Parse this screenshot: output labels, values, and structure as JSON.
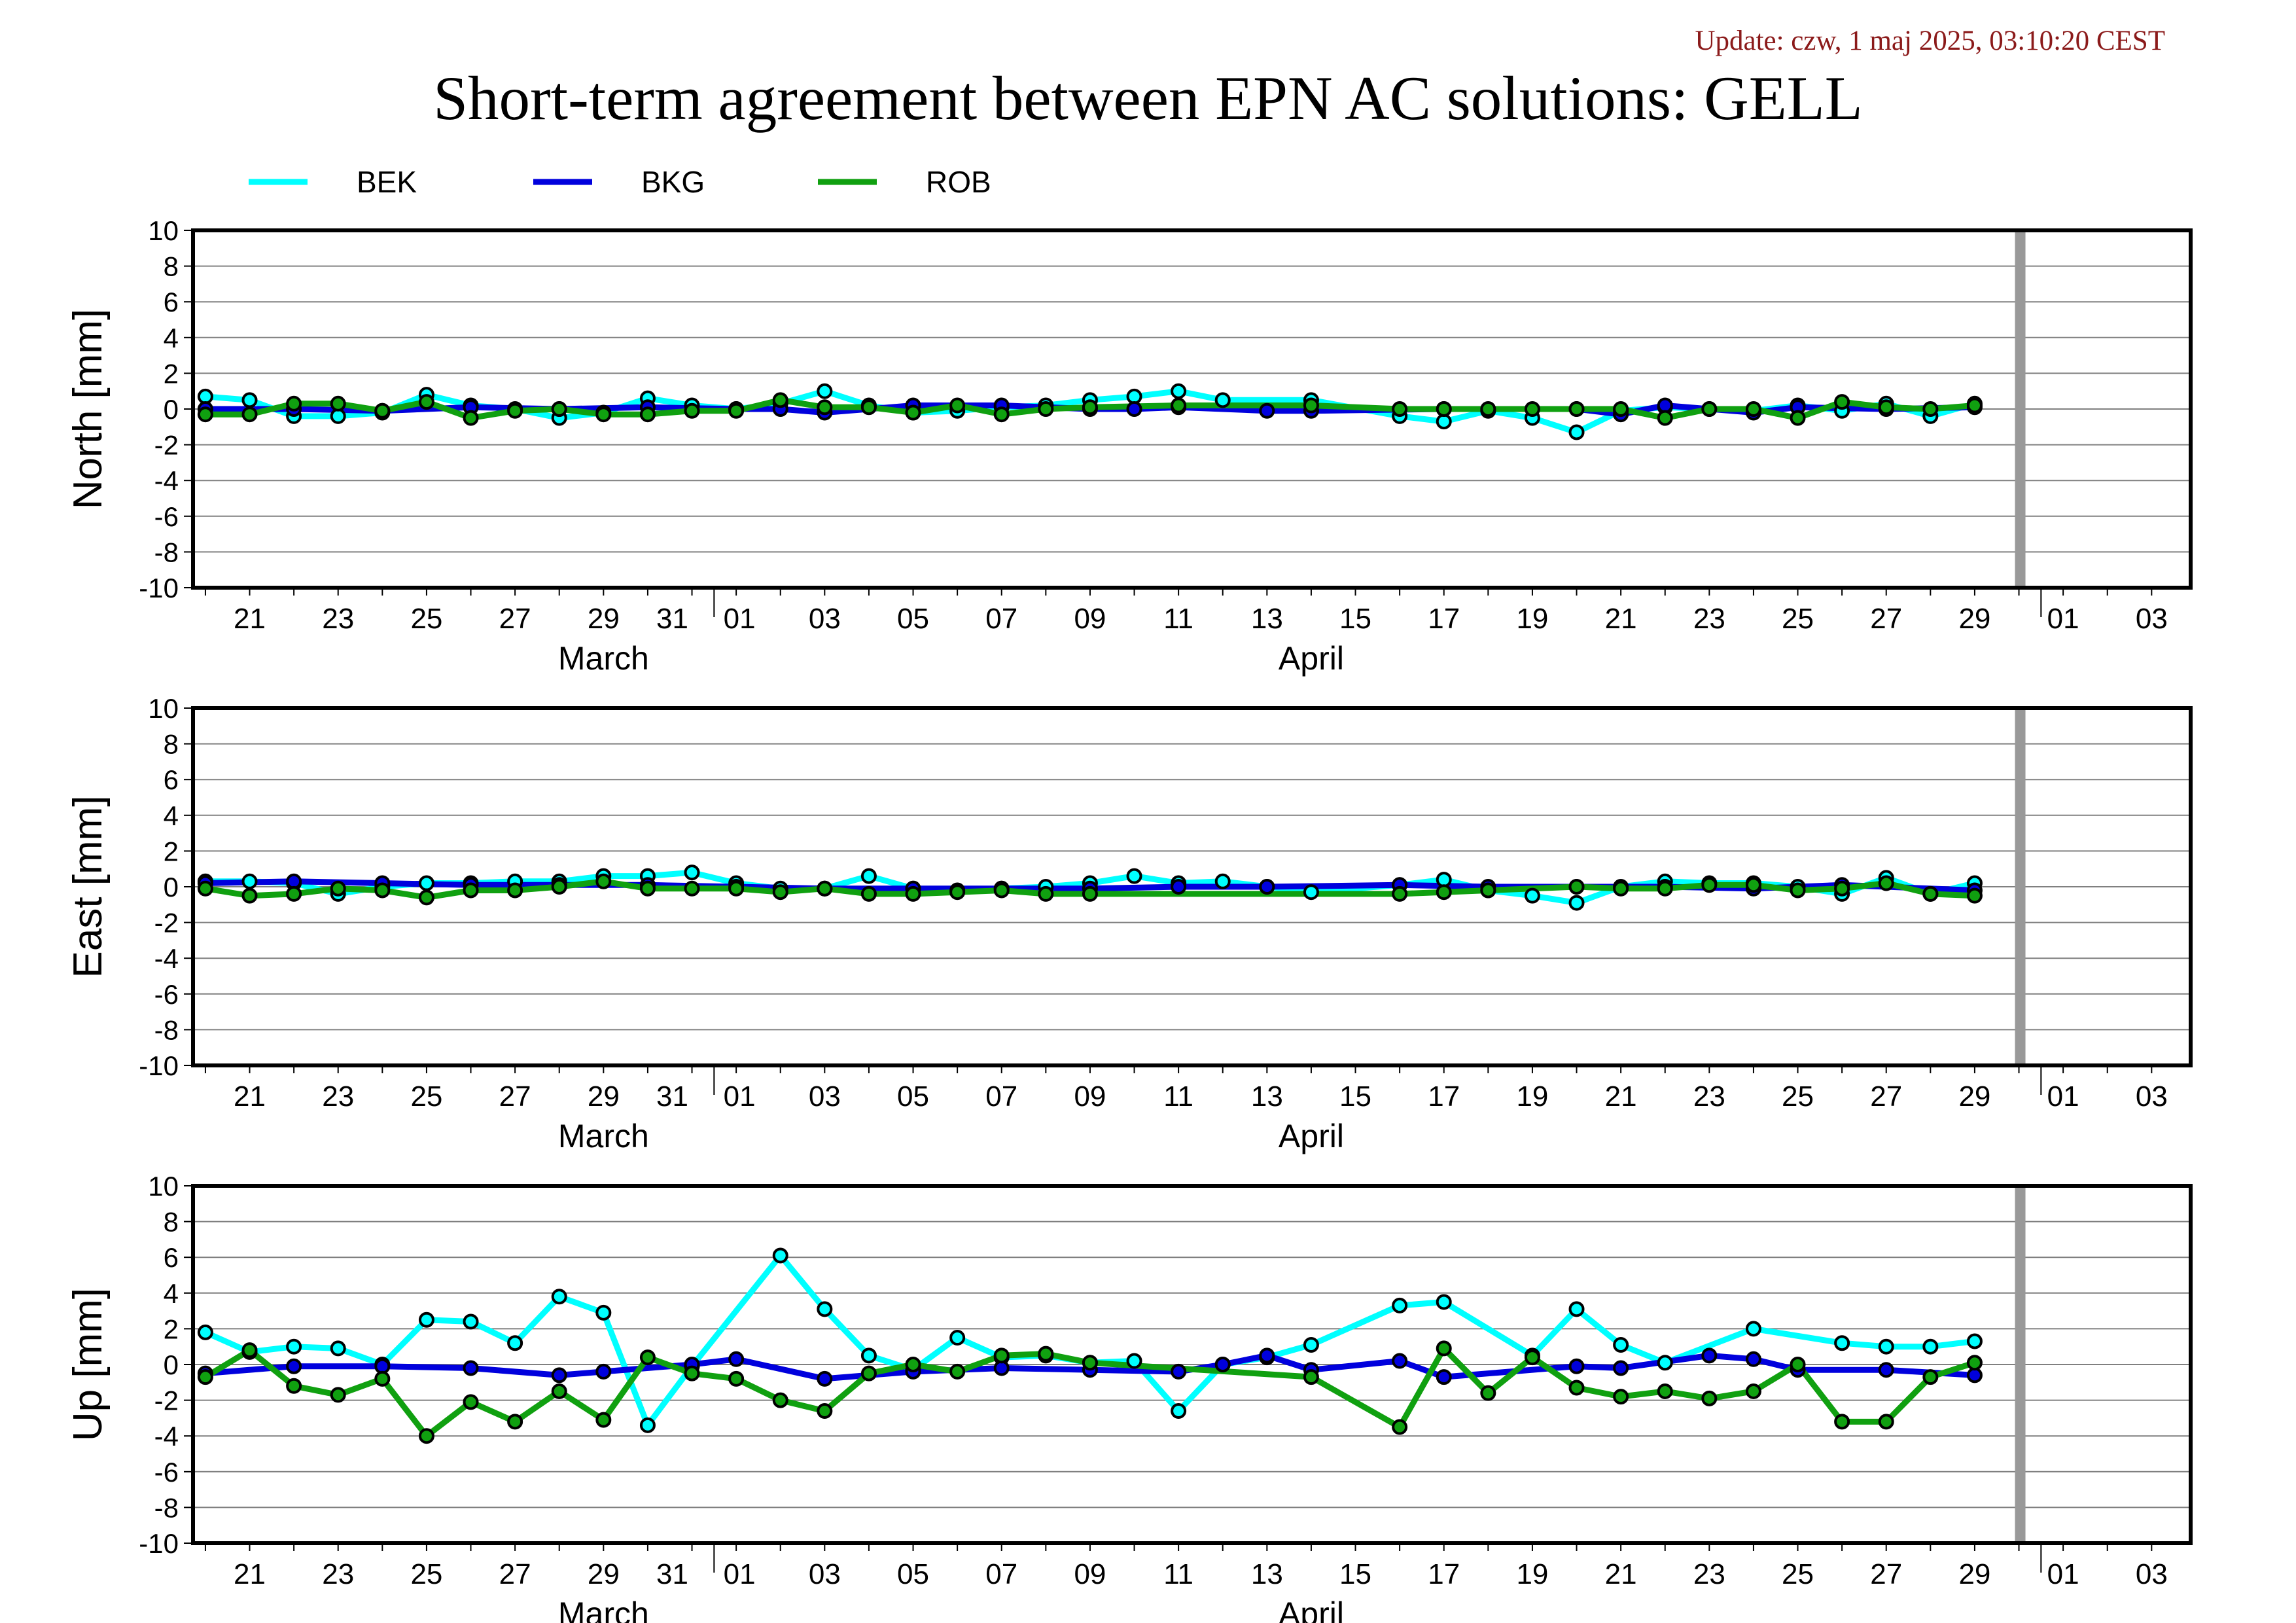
{
  "update_text": "Update: czw, 1 maj 2025, 03:10:20 CEST",
  "title": "Short-term agreement between EPN AC solutions: GELL",
  "colors": {
    "BEK": "#00ffff",
    "BKG": "#0000dd",
    "ROB": "#10a010",
    "marker_edge": "#000000",
    "gap_bar": "#999999",
    "grid": "#808080"
  },
  "chart_data": {
    "type": "line",
    "x_ticks": [
      "21",
      "23",
      "25",
      "27",
      "29",
      "31",
      "01",
      "03",
      "05",
      "07",
      "09",
      "11",
      "13",
      "15",
      "17",
      "19",
      "21",
      "23",
      "25",
      "27",
      "29",
      "01",
      "03"
    ],
    "month_labels": [
      "March",
      "April"
    ],
    "y_ticks": [
      "10",
      "8",
      "6",
      "4",
      "2",
      "0",
      "-2",
      "-4",
      "-6",
      "-8",
      "-10"
    ],
    "ylim": [
      -10,
      10
    ],
    "x_range": [
      "2025-03-20",
      "2025-05-04"
    ],
    "data_gap_date": "2025-04-30",
    "legend": [
      "BEK",
      "BKG",
      "ROB"
    ],
    "panels": [
      {
        "ylabel": "North [mm]",
        "series": [
          {
            "name": "BEK",
            "x": [
              "2025-03-20",
              "2025-03-21",
              "2025-03-22",
              "2025-03-23",
              "2025-03-24",
              "2025-03-25",
              "2025-03-26",
              "2025-03-27",
              "2025-03-28",
              "2025-03-29",
              "2025-03-30",
              "2025-03-31",
              "2025-04-01",
              "2025-04-02",
              "2025-04-03",
              "2025-04-04",
              "2025-04-05",
              "2025-04-06",
              "2025-04-07",
              "2025-04-08",
              "2025-04-09",
              "2025-04-10",
              "2025-04-11",
              "2025-04-12",
              "2025-04-14",
              "2025-04-16",
              "2025-04-17",
              "2025-04-18",
              "2025-04-19",
              "2025-04-20",
              "2025-04-21",
              "2025-04-22",
              "2025-04-23",
              "2025-04-24",
              "2025-04-25",
              "2025-04-26",
              "2025-04-27",
              "2025-04-28",
              "2025-04-29"
            ],
            "values": [
              0.7,
              0.5,
              -0.4,
              -0.4,
              -0.2,
              0.8,
              0.2,
              0.0,
              -0.5,
              -0.2,
              0.6,
              0.2,
              0.0,
              0.3,
              1.0,
              0.2,
              -0.2,
              -0.1,
              0.1,
              0.2,
              0.5,
              0.7,
              1.0,
              0.5,
              0.5,
              -0.4,
              -0.7,
              -0.1,
              -0.5,
              -1.3,
              -0.1,
              0.1,
              0.0,
              -0.1,
              0.2,
              -0.1,
              0.3,
              -0.4,
              0.3
            ]
          },
          {
            "name": "BKG",
            "x": [
              "2025-03-20",
              "2025-03-22",
              "2025-03-24",
              "2025-03-26",
              "2025-03-28",
              "2025-03-30",
              "2025-04-01",
              "2025-04-02",
              "2025-04-03",
              "2025-04-05",
              "2025-04-07",
              "2025-04-09",
              "2025-04-10",
              "2025-04-11",
              "2025-04-13",
              "2025-04-14",
              "2025-04-17",
              "2025-04-20",
              "2025-04-21",
              "2025-04-22",
              "2025-04-24",
              "2025-04-25",
              "2025-04-27",
              "2025-04-29"
            ],
            "values": [
              0.0,
              0.0,
              -0.1,
              0.1,
              0.0,
              0.1,
              0.0,
              0.0,
              -0.2,
              0.2,
              0.2,
              0.0,
              0.0,
              0.1,
              -0.1,
              -0.1,
              0.0,
              0.0,
              -0.3,
              0.2,
              -0.2,
              0.1,
              0.0,
              0.1
            ]
          },
          {
            "name": "ROB",
            "x": [
              "2025-03-20",
              "2025-03-21",
              "2025-03-22",
              "2025-03-23",
              "2025-03-24",
              "2025-03-25",
              "2025-03-26",
              "2025-03-27",
              "2025-03-28",
              "2025-03-29",
              "2025-03-30",
              "2025-03-31",
              "2025-04-01",
              "2025-04-02",
              "2025-04-03",
              "2025-04-04",
              "2025-04-05",
              "2025-04-06",
              "2025-04-07",
              "2025-04-08",
              "2025-04-09",
              "2025-04-11",
              "2025-04-14",
              "2025-04-16",
              "2025-04-17",
              "2025-04-18",
              "2025-04-19",
              "2025-04-20",
              "2025-04-21",
              "2025-04-22",
              "2025-04-23",
              "2025-04-24",
              "2025-04-25",
              "2025-04-26",
              "2025-04-27",
              "2025-04-28",
              "2025-04-29"
            ],
            "values": [
              -0.3,
              -0.3,
              0.3,
              0.3,
              -0.1,
              0.4,
              -0.5,
              -0.1,
              0.0,
              -0.3,
              -0.3,
              -0.1,
              -0.1,
              0.5,
              0.1,
              0.1,
              -0.2,
              0.2,
              -0.3,
              0.0,
              0.1,
              0.2,
              0.2,
              0.0,
              0.0,
              0.0,
              0.0,
              0.0,
              0.0,
              -0.5,
              0.0,
              0.0,
              -0.5,
              0.4,
              0.1,
              0.0,
              0.2
            ]
          }
        ]
      },
      {
        "ylabel": "East [mm]",
        "series": [
          {
            "name": "BEK",
            "x": [
              "2025-03-20",
              "2025-03-21",
              "2025-03-22",
              "2025-03-23",
              "2025-03-24",
              "2025-03-25",
              "2025-03-26",
              "2025-03-27",
              "2025-03-28",
              "2025-03-29",
              "2025-03-30",
              "2025-03-31",
              "2025-04-01",
              "2025-04-02",
              "2025-04-03",
              "2025-04-04",
              "2025-04-05",
              "2025-04-06",
              "2025-04-07",
              "2025-04-08",
              "2025-04-09",
              "2025-04-10",
              "2025-04-11",
              "2025-04-12",
              "2025-04-13",
              "2025-04-14",
              "2025-04-16",
              "2025-04-17",
              "2025-04-18",
              "2025-04-19",
              "2025-04-20",
              "2025-04-21",
              "2025-04-22",
              "2025-04-23",
              "2025-04-24",
              "2025-04-25",
              "2025-04-26",
              "2025-04-27",
              "2025-04-28",
              "2025-04-29"
            ],
            "values": [
              0.3,
              0.3,
              0.2,
              -0.4,
              0.0,
              0.2,
              0.2,
              0.3,
              0.3,
              0.6,
              0.6,
              0.8,
              0.2,
              -0.1,
              -0.1,
              0.6,
              -0.1,
              -0.2,
              -0.1,
              0.0,
              0.2,
              0.6,
              0.2,
              0.3,
              0.0,
              -0.3,
              0.1,
              0.4,
              -0.2,
              -0.5,
              -0.9,
              0.0,
              0.3,
              0.2,
              0.2,
              0.0,
              -0.4,
              0.5,
              -0.4,
              0.2
            ]
          },
          {
            "name": "BKG",
            "x": [
              "2025-03-20",
              "2025-03-22",
              "2025-03-24",
              "2025-03-26",
              "2025-03-28",
              "2025-03-30",
              "2025-04-01",
              "2025-04-03",
              "2025-04-05",
              "2025-04-07",
              "2025-04-09",
              "2025-04-11",
              "2025-04-13",
              "2025-04-16",
              "2025-04-18",
              "2025-04-20",
              "2025-04-22",
              "2025-04-24",
              "2025-04-26",
              "2025-04-29"
            ],
            "values": [
              0.2,
              0.3,
              0.2,
              0.1,
              0.1,
              0.1,
              0.0,
              -0.1,
              -0.1,
              -0.1,
              -0.1,
              0.0,
              0.0,
              0.1,
              0.0,
              0.0,
              0.0,
              -0.1,
              0.1,
              -0.2
            ]
          },
          {
            "name": "ROB",
            "x": [
              "2025-03-20",
              "2025-03-21",
              "2025-03-22",
              "2025-03-23",
              "2025-03-24",
              "2025-03-25",
              "2025-03-26",
              "2025-03-27",
              "2025-03-28",
              "2025-03-29",
              "2025-03-30",
              "2025-03-31",
              "2025-04-01",
              "2025-04-02",
              "2025-04-03",
              "2025-04-04",
              "2025-04-05",
              "2025-04-06",
              "2025-04-07",
              "2025-04-08",
              "2025-04-09",
              "2025-04-16",
              "2025-04-17",
              "2025-04-18",
              "2025-04-20",
              "2025-04-21",
              "2025-04-22",
              "2025-04-23",
              "2025-04-24",
              "2025-04-25",
              "2025-04-26",
              "2025-04-27",
              "2025-04-28",
              "2025-04-29"
            ],
            "values": [
              -0.1,
              -0.5,
              -0.4,
              -0.1,
              -0.2,
              -0.6,
              -0.2,
              -0.2,
              0.0,
              0.3,
              -0.1,
              -0.1,
              -0.1,
              -0.3,
              -0.1,
              -0.4,
              -0.4,
              -0.3,
              -0.2,
              -0.4,
              -0.4,
              -0.4,
              -0.3,
              -0.2,
              0.0,
              -0.1,
              -0.1,
              0.1,
              0.1,
              -0.2,
              -0.1,
              0.2,
              -0.4,
              -0.5
            ]
          }
        ]
      },
      {
        "ylabel": "Up [mm]",
        "series": [
          {
            "name": "BEK",
            "x": [
              "2025-03-20",
              "2025-03-21",
              "2025-03-22",
              "2025-03-23",
              "2025-03-24",
              "2025-03-25",
              "2025-03-26",
              "2025-03-27",
              "2025-03-28",
              "2025-03-29",
              "2025-03-30",
              "2025-03-31",
              "2025-04-02",
              "2025-04-03",
              "2025-04-04",
              "2025-04-05",
              "2025-04-06",
              "2025-04-07",
              "2025-04-08",
              "2025-04-09",
              "2025-04-10",
              "2025-04-11",
              "2025-04-12",
              "2025-04-13",
              "2025-04-14",
              "2025-04-16",
              "2025-04-17",
              "2025-04-19",
              "2025-04-20",
              "2025-04-21",
              "2025-04-22",
              "2025-04-24",
              "2025-04-26",
              "2025-04-27",
              "2025-04-28",
              "2025-04-29"
            ],
            "values": [
              1.8,
              0.7,
              1.0,
              0.9,
              0.0,
              2.5,
              2.4,
              1.2,
              3.8,
              2.9,
              -3.4,
              -0.1,
              6.1,
              3.1,
              0.5,
              -0.3,
              1.5,
              0.4,
              0.5,
              0.1,
              0.2,
              -2.6,
              0.0,
              0.4,
              1.1,
              3.3,
              3.5,
              0.5,
              3.1,
              1.1,
              0.1,
              2.0,
              1.2,
              1.0,
              1.0,
              1.3
            ]
          },
          {
            "name": "BKG",
            "x": [
              "2025-03-20",
              "2025-03-22",
              "2025-03-24",
              "2025-03-26",
              "2025-03-28",
              "2025-03-29",
              "2025-03-31",
              "2025-04-01",
              "2025-04-03",
              "2025-04-05",
              "2025-04-07",
              "2025-04-09",
              "2025-04-11",
              "2025-04-12",
              "2025-04-13",
              "2025-04-14",
              "2025-04-16",
              "2025-04-17",
              "2025-04-20",
              "2025-04-21",
              "2025-04-23",
              "2025-04-24",
              "2025-04-25",
              "2025-04-27",
              "2025-04-29"
            ],
            "values": [
              -0.5,
              -0.1,
              -0.1,
              -0.2,
              -0.6,
              -0.4,
              0.0,
              0.3,
              -0.8,
              -0.4,
              -0.2,
              -0.3,
              -0.4,
              0.0,
              0.5,
              -0.3,
              0.2,
              -0.7,
              -0.1,
              -0.2,
              0.5,
              0.3,
              -0.3,
              -0.3,
              -0.6
            ]
          },
          {
            "name": "ROB",
            "x": [
              "2025-03-20",
              "2025-03-21",
              "2025-03-22",
              "2025-03-23",
              "2025-03-24",
              "2025-03-25",
              "2025-03-26",
              "2025-03-27",
              "2025-03-28",
              "2025-03-29",
              "2025-03-30",
              "2025-03-31",
              "2025-04-01",
              "2025-04-02",
              "2025-04-03",
              "2025-04-04",
              "2025-04-05",
              "2025-04-06",
              "2025-04-07",
              "2025-04-08",
              "2025-04-09",
              "2025-04-14",
              "2025-04-16",
              "2025-04-17",
              "2025-04-18",
              "2025-04-19",
              "2025-04-20",
              "2025-04-21",
              "2025-04-22",
              "2025-04-23",
              "2025-04-24",
              "2025-04-25",
              "2025-04-26",
              "2025-04-27",
              "2025-04-28",
              "2025-04-29"
            ],
            "values": [
              -0.7,
              0.8,
              -1.2,
              -1.7,
              -0.8,
              -4.0,
              -2.1,
              -3.2,
              -1.5,
              -3.1,
              0.4,
              -0.5,
              -0.8,
              -2.0,
              -2.6,
              -0.5,
              0.0,
              -0.4,
              0.5,
              0.6,
              0.1,
              -0.7,
              -3.5,
              0.9,
              -1.6,
              0.4,
              -1.3,
              -1.8,
              -1.5,
              -1.9,
              -1.5,
              0.0,
              -3.2,
              -3.2,
              -0.7,
              0.1
            ]
          }
        ]
      }
    ]
  }
}
